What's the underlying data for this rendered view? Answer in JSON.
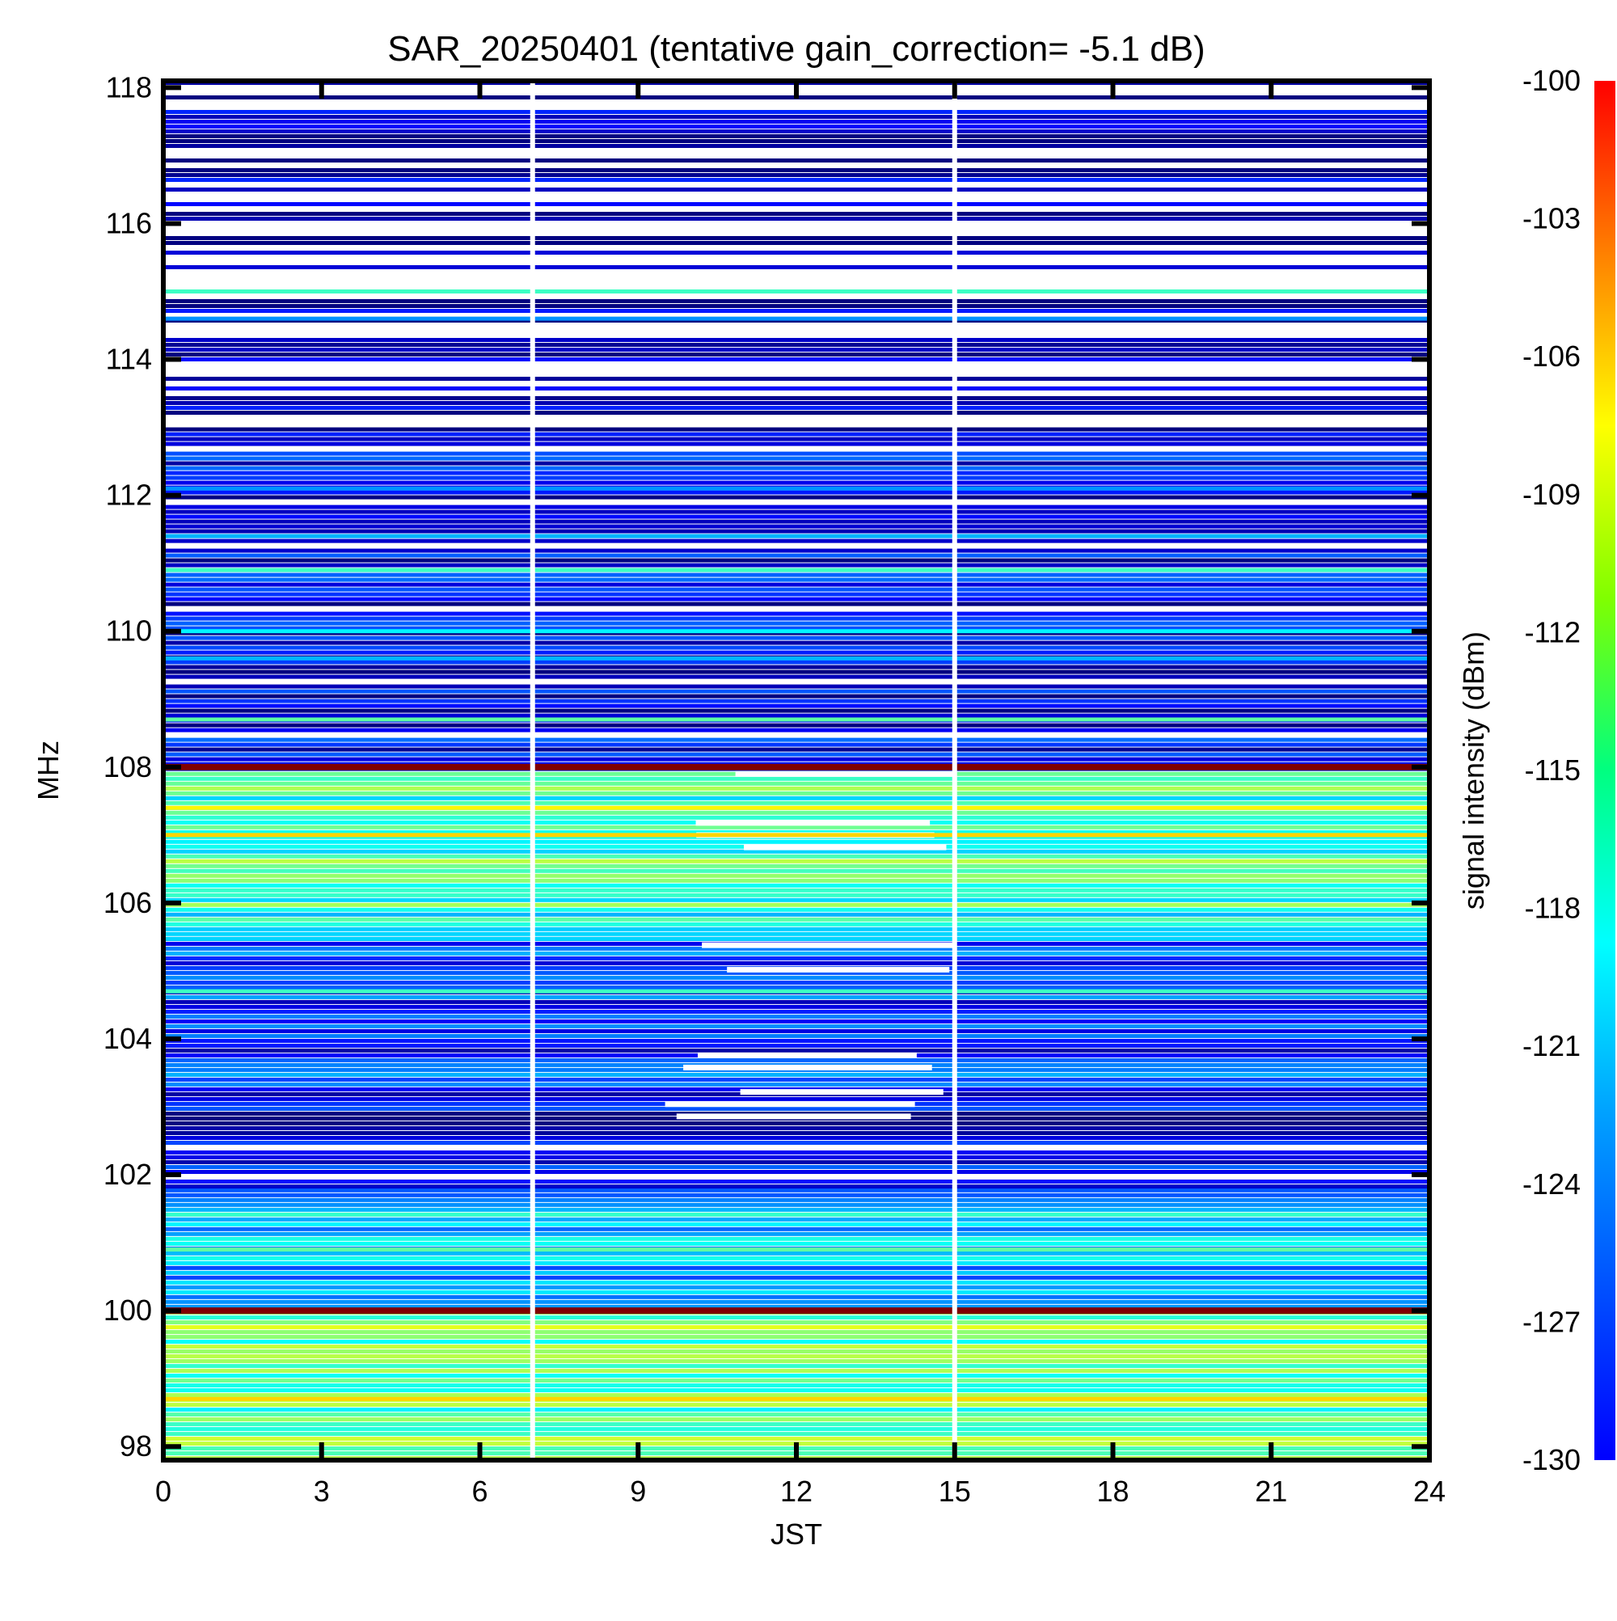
{
  "chart_data": {
    "type": "heatmap",
    "title": "SAR_20250401 (tentative gain_correction= -5.1 dB)",
    "xlabel": "JST",
    "ylabel": "MHz",
    "xlim": [
      0,
      24
    ],
    "ylim": [
      97.8,
      118.1
    ],
    "x_ticks": [
      {
        "value": 0,
        "label": "0"
      },
      {
        "value": 3,
        "label": "3"
      },
      {
        "value": 6,
        "label": "6"
      },
      {
        "value": 9,
        "label": "9"
      },
      {
        "value": 12,
        "label": "12"
      },
      {
        "value": 15,
        "label": "15"
      },
      {
        "value": 18,
        "label": "18"
      },
      {
        "value": 21,
        "label": "21"
      },
      {
        "value": 24,
        "label": "24"
      }
    ],
    "y_ticks": [
      {
        "value": 98,
        "label": "98"
      },
      {
        "value": 100,
        "label": "100"
      },
      {
        "value": 102,
        "label": "102"
      },
      {
        "value": 104,
        "label": "104"
      },
      {
        "value": 106,
        "label": "106"
      },
      {
        "value": 108,
        "label": "108"
      },
      {
        "value": 110,
        "label": "110"
      },
      {
        "value": 112,
        "label": "112"
      },
      {
        "value": 114,
        "label": "114"
      },
      {
        "value": 116,
        "label": "116"
      },
      {
        "value": 118,
        "label": "118"
      }
    ],
    "colorbar": {
      "label": "signal intensity (dBm)",
      "range": [
        -130,
        -100
      ],
      "colormap": "jet",
      "ticks": [
        {
          "value": -100,
          "label": "-100"
        },
        {
          "value": -103,
          "label": "-103"
        },
        {
          "value": -106,
          "label": "-106"
        },
        {
          "value": -109,
          "label": "-109"
        },
        {
          "value": -112,
          "label": "-112"
        },
        {
          "value": -115,
          "label": "-115"
        },
        {
          "value": -118,
          "label": "-118"
        },
        {
          "value": -121,
          "label": "-121"
        },
        {
          "value": -124,
          "label": "-124"
        },
        {
          "value": -127,
          "label": "-127"
        },
        {
          "value": -130,
          "label": "-130"
        }
      ]
    },
    "data_gaps_jst": [
      7.0,
      15.0
    ],
    "strong_lines_mhz": [
      {
        "freq": 100.0,
        "dbm": -100
      },
      {
        "freq": 108.0,
        "dbm": -100
      }
    ],
    "bands": [
      {
        "from": 97.8,
        "to": 100.0,
        "dbm": -116
      },
      {
        "from": 100.0,
        "to": 101.8,
        "dbm": -121
      },
      {
        "from": 101.8,
        "to": 103.0,
        "dbm": -127
      },
      {
        "from": 103.0,
        "to": 105.5,
        "dbm": -125
      },
      {
        "from": 105.5,
        "to": 108.0,
        "dbm": -117
      },
      {
        "from": 108.0,
        "to": 113.0,
        "dbm": -127
      },
      {
        "from": 113.0,
        "to": 118.1,
        "dbm": -129
      }
    ],
    "persistent_lines": [
      {
        "freq": 98.7,
        "dbm": -110
      },
      {
        "freq": 100.9,
        "dbm": -116
      },
      {
        "freq": 104.7,
        "dbm": -117
      },
      {
        "freq": 107.0,
        "dbm": -110
      },
      {
        "freq": 107.4,
        "dbm": -111
      },
      {
        "freq": 108.7,
        "dbm": -116
      },
      {
        "freq": 109.6,
        "dbm": -121
      },
      {
        "freq": 110.0,
        "dbm": -119
      },
      {
        "freq": 110.9,
        "dbm": -117
      },
      {
        "freq": 111.4,
        "dbm": -121
      },
      {
        "freq": 112.1,
        "dbm": -122
      },
      {
        "freq": 114.6,
        "dbm": -122
      },
      {
        "freq": 115.0,
        "dbm": -117
      },
      {
        "freq": 116.5,
        "dbm": -128
      }
    ],
    "fading_region": {
      "x_from": 9.5,
      "x_to": 15.0,
      "freq_from": 102.8,
      "freq_to": 108.0
    },
    "grid": false
  }
}
